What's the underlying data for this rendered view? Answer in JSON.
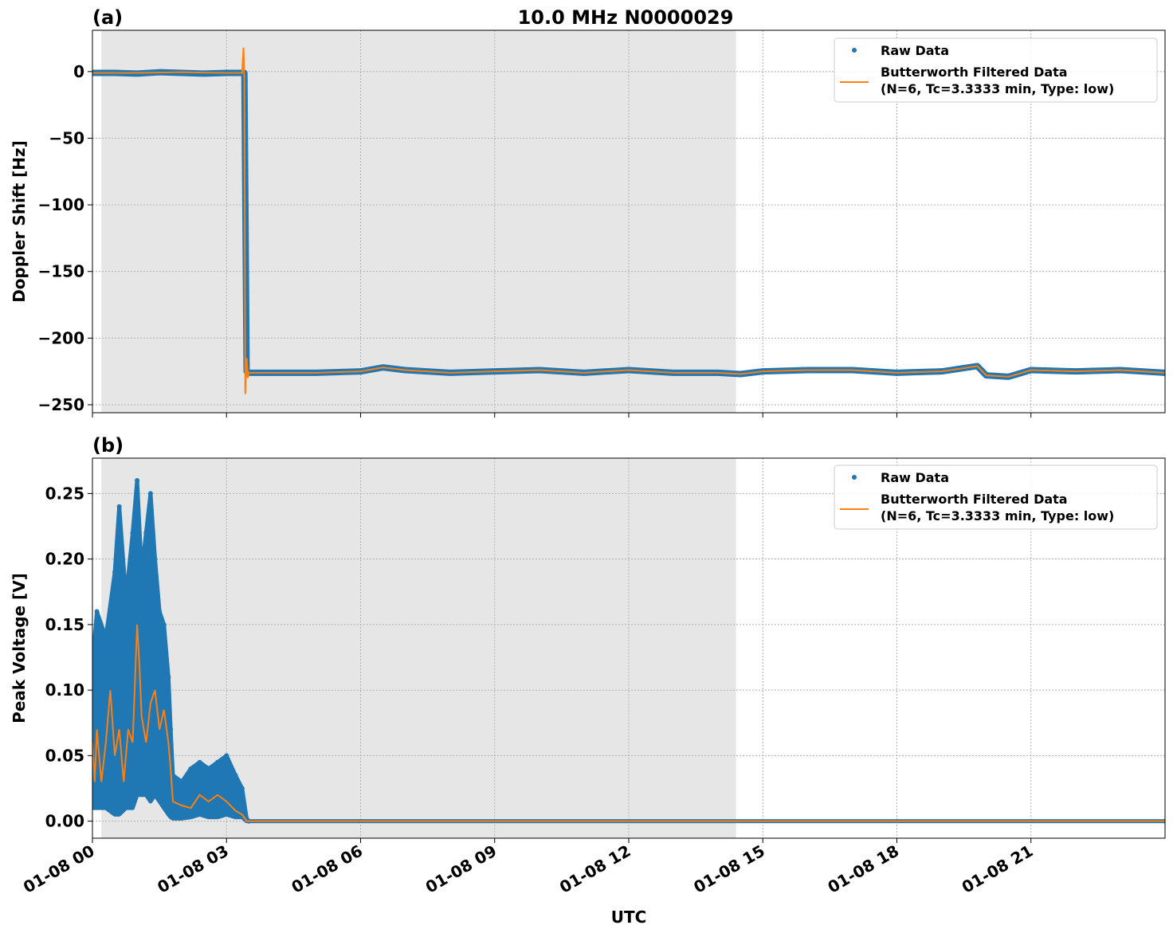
{
  "figure_title": "10.0 MHz N0000029",
  "x_label": "UTC",
  "x_ticks": [
    "01-08 00",
    "01-08 03",
    "01-08 06",
    "01-08 09",
    "01-08 12",
    "01-08 15",
    "01-08 18",
    "01-08 21"
  ],
  "shading": {
    "from_hours": 0.2,
    "to_hours": 14.4,
    "color": "#e6e6e6"
  },
  "colors": {
    "raw": "#1f77b4",
    "filtered": "#ff7f0e",
    "grid": "#b0b0b0"
  },
  "legend": {
    "raw_label": "Raw Data",
    "filtered_line1": "Butterworth Filtered Data",
    "filtered_line2": "(N=6, Tc=3.3333 min, Type: low)",
    "placement": "upper right"
  },
  "chart_data": [
    {
      "type": "scatter",
      "panel_label": "(a)",
      "ylabel": "Doppler Shift [Hz]",
      "xlim_hours": [
        0,
        24
      ],
      "ylim": [
        -256,
        31
      ],
      "y_ticks": [
        "0",
        "−50",
        "−100",
        "−150",
        "−200",
        "−250"
      ],
      "y_tick_values": [
        0,
        -50,
        -100,
        -150,
        -200,
        -250
      ],
      "grid": true,
      "series": [
        {
          "name": "Raw Data",
          "kind": "points",
          "x_hours": [
            0,
            0.5,
            1.0,
            1.5,
            2.0,
            2.5,
            3.0,
            3.4,
            3.45,
            3.5,
            3.7,
            4.0,
            5.0,
            6.0,
            6.5,
            7.0,
            8.0,
            9.0,
            10.0,
            11.0,
            12.0,
            13.0,
            14.0,
            14.5,
            15.0,
            16.0,
            17.0,
            18.0,
            19.0,
            19.8,
            20.0,
            20.5,
            21.0,
            22.0,
            23.0,
            24.0
          ],
          "y": [
            -1,
            -1,
            -1.5,
            -0.5,
            -1,
            -1.5,
            -1,
            -1,
            -225,
            -226,
            -226,
            -226,
            -226,
            -225,
            -222,
            -224,
            -226,
            -225,
            -224,
            -226,
            -224,
            -226,
            -226,
            -227,
            -225,
            -224,
            -224,
            -226,
            -225,
            -221,
            -228,
            -229,
            -224,
            -225,
            -224,
            -226
          ]
        },
        {
          "name": "Butterworth Filtered Data",
          "kind": "line",
          "x_hours": [
            0,
            1.0,
            2.0,
            3.0,
            3.35,
            3.38,
            3.4,
            3.42,
            3.45,
            3.48,
            3.5,
            3.6,
            4.0,
            5.0,
            6.0,
            6.5,
            7.0,
            8.0,
            9.0,
            10.0,
            11.0,
            12.0,
            13.0,
            14.0,
            14.5,
            15.0,
            16.0,
            17.0,
            18.0,
            19.0,
            19.8,
            20.0,
            20.5,
            21.0,
            22.0,
            23.0,
            24.0
          ],
          "y": [
            -1,
            -1,
            -0.5,
            -1,
            -1,
            18,
            -7,
            -242,
            -215,
            -230,
            -226,
            -226,
            -226,
            -226,
            -225,
            -222,
            -224,
            -226,
            -225,
            -224,
            -226,
            -224,
            -226,
            -226,
            -227,
            -225,
            -224,
            -224,
            -226,
            -225,
            -221,
            -228,
            -229,
            -224,
            -225,
            -224,
            -226
          ]
        }
      ]
    },
    {
      "type": "scatter",
      "panel_label": "(b)",
      "ylabel": "Peak Voltage [V]",
      "xlim_hours": [
        0,
        24
      ],
      "ylim": [
        -0.013,
        0.277
      ],
      "y_ticks": [
        "0.00",
        "0.05",
        "0.10",
        "0.15",
        "0.20",
        "0.25"
      ],
      "y_tick_values": [
        0,
        0.05,
        0.1,
        0.15,
        0.2,
        0.25
      ],
      "grid": true,
      "series": [
        {
          "name": "Raw Data",
          "kind": "band",
          "x_hours": [
            0,
            0.1,
            0.3,
            0.5,
            0.6,
            0.75,
            0.9,
            1.0,
            1.1,
            1.2,
            1.3,
            1.4,
            1.5,
            1.6,
            1.7,
            1.75,
            1.8,
            2.0,
            2.2,
            2.4,
            2.6,
            2.8,
            3.0,
            3.2,
            3.35,
            3.45,
            3.5,
            24.0
          ],
          "y_low": [
            0.01,
            0.01,
            0.01,
            0.005,
            0.005,
            0.01,
            0.01,
            0.02,
            0.02,
            0.02,
            0.015,
            0.02,
            0.015,
            0.01,
            0.005,
            0.003,
            0.002,
            0.002,
            0.003,
            0.005,
            0.003,
            0.003,
            0.005,
            0.003,
            0.003,
            0.0,
            0.0,
            0.0
          ],
          "y_high": [
            0.12,
            0.16,
            0.14,
            0.19,
            0.24,
            0.17,
            0.22,
            0.26,
            0.19,
            0.22,
            0.25,
            0.2,
            0.16,
            0.15,
            0.11,
            0.07,
            0.035,
            0.03,
            0.04,
            0.045,
            0.04,
            0.045,
            0.05,
            0.035,
            0.025,
            0.002,
            0.0,
            0.0
          ]
        },
        {
          "name": "Butterworth Filtered Data",
          "kind": "line",
          "x_hours": [
            0,
            0.05,
            0.1,
            0.2,
            0.3,
            0.4,
            0.5,
            0.6,
            0.7,
            0.8,
            0.9,
            1.0,
            1.05,
            1.1,
            1.2,
            1.3,
            1.4,
            1.5,
            1.6,
            1.7,
            1.75,
            1.8,
            2.0,
            2.2,
            2.4,
            2.6,
            2.8,
            3.0,
            3.2,
            3.35,
            3.45,
            3.5,
            24.0
          ],
          "y": [
            0.06,
            0.03,
            0.07,
            0.03,
            0.06,
            0.1,
            0.05,
            0.07,
            0.03,
            0.07,
            0.06,
            0.15,
            0.12,
            0.08,
            0.06,
            0.09,
            0.1,
            0.07,
            0.085,
            0.06,
            0.04,
            0.015,
            0.012,
            0.01,
            0.02,
            0.015,
            0.02,
            0.015,
            0.008,
            0.005,
            0.0,
            0.0,
            0.0
          ]
        }
      ]
    }
  ]
}
